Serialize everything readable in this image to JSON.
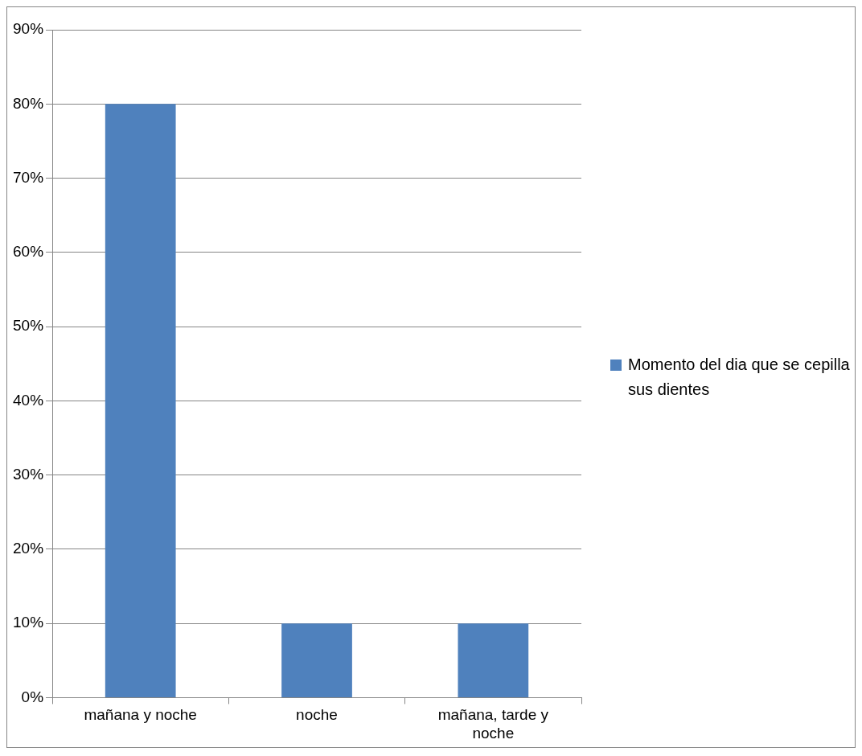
{
  "chart_data": {
    "type": "bar",
    "categories": [
      "mañana y noche",
      "noche",
      "mañana, tarde y noche"
    ],
    "series": [
      {
        "name": "Momento del dia que se cepilla sus dientes",
        "color": "#4f81bd",
        "values": [
          80,
          10,
          10
        ]
      }
    ],
    "ylim": [
      0,
      90
    ],
    "yticks": [
      {
        "value": 0,
        "label": "0%"
      },
      {
        "value": 10,
        "label": "10%"
      },
      {
        "value": 20,
        "label": "20%"
      },
      {
        "value": 30,
        "label": "30%"
      },
      {
        "value": 40,
        "label": "40%"
      },
      {
        "value": 50,
        "label": "50%"
      },
      {
        "value": 60,
        "label": "60%"
      },
      {
        "value": 70,
        "label": "70%"
      },
      {
        "value": 80,
        "label": "80%"
      },
      {
        "value": 90,
        "label": "90%"
      }
    ],
    "grid": "y",
    "legend": "right"
  }
}
